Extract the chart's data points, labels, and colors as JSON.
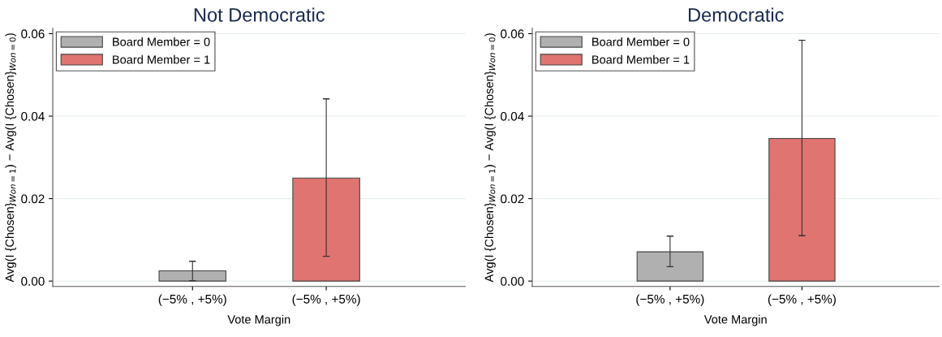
{
  "chart_data": [
    {
      "type": "bar",
      "title": "Not Democratic",
      "xlabel": "Vote Margin",
      "ylabel": "Avg(I {Chosen}$_{Won=1}$) − Avg(I {Chosen}$_{Won=0}$)",
      "categories": [
        "(−5% , +5%)",
        "(−5% , +5%)"
      ],
      "series": [
        {
          "name": "Board Member = 0",
          "color": "#b0b0b0",
          "values": [
            0.0025,
            null
          ],
          "errors": [
            [
              0.0001,
              0.0048
            ],
            null
          ]
        },
        {
          "name": "Board Member = 1",
          "color": "#e07470",
          "values": [
            null,
            0.025
          ],
          "errors": [
            null,
            [
              0.006,
              0.0442
            ]
          ]
        }
      ],
      "ylim": [
        -0.0013,
        0.0613
      ],
      "yticks": [
        {
          "value": 0,
          "label": "0.00"
        },
        {
          "value": 0.02,
          "label": "0.02"
        },
        {
          "value": 0.04,
          "label": "0.04"
        },
        {
          "value": 0.06,
          "label": "0.06"
        }
      ],
      "grid": "y",
      "legend": "top left"
    },
    {
      "type": "bar",
      "title": "Democratic",
      "xlabel": "Vote Margin",
      "ylabel": "Avg(I {Chosen}$_{Won=1}$) − Avg(I {Chosen}$_{Won=0}$)",
      "categories": [
        "(−5% , +5%)",
        "(−5% , +5%)"
      ],
      "series": [
        {
          "name": "Board Member = 0",
          "color": "#b0b0b0",
          "values": [
            0.0071,
            null
          ],
          "errors": [
            [
              0.0035,
              0.0109
            ],
            null
          ]
        },
        {
          "name": "Board Member = 1",
          "color": "#e07470",
          "values": [
            null,
            0.0346
          ],
          "errors": [
            null,
            [
              0.011,
              0.0584
            ]
          ]
        }
      ],
      "ylim": [
        -0.0013,
        0.0613
      ],
      "yticks": [
        {
          "value": 0,
          "label": "0.00"
        },
        {
          "value": 0.02,
          "label": "0.02"
        },
        {
          "value": 0.04,
          "label": "0.04"
        },
        {
          "value": 0.06,
          "label": "0.06"
        }
      ],
      "grid": "y",
      "legend": "top left"
    }
  ]
}
